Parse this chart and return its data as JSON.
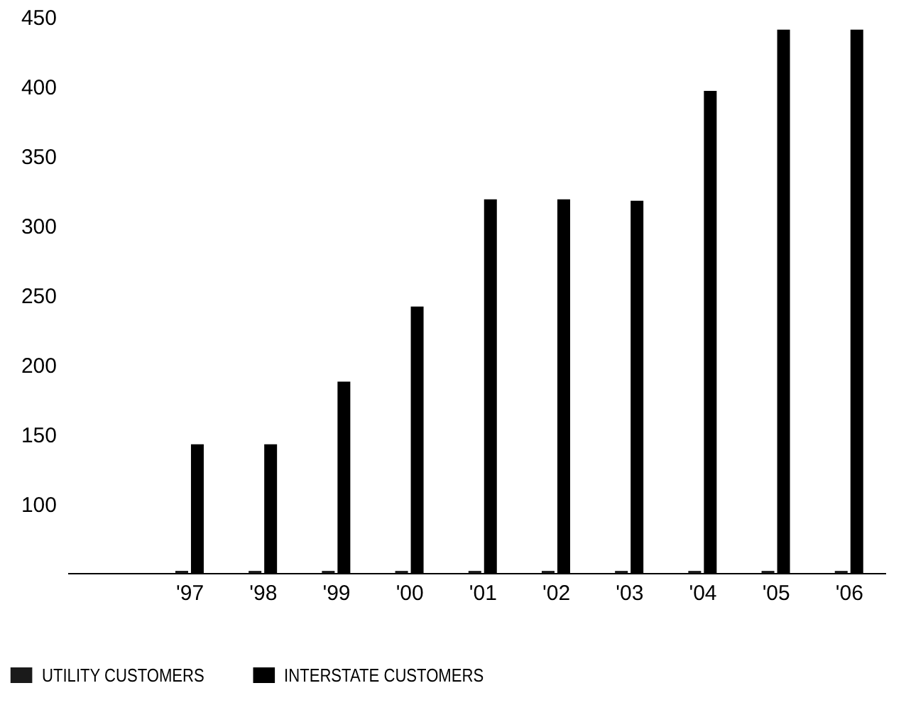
{
  "chart_data": {
    "type": "bar",
    "categories": [
      "'97",
      "'98",
      "'99",
      "'00",
      "'01",
      "'02",
      "'03",
      "'04",
      "'05",
      "'06"
    ],
    "series": [
      {
        "name": "UTILITY CUSTOMERS",
        "color": "#1a1a1a",
        "values": [
          52,
          52,
          52,
          52,
          52,
          52,
          52,
          52,
          52,
          52
        ]
      },
      {
        "name": "INTERSTATE CUSTOMERS",
        "color": "#000000",
        "values": [
          143,
          143,
          188,
          242,
          319,
          319,
          318,
          397,
          441,
          441
        ]
      }
    ],
    "ylim": [
      50,
      450
    ],
    "yticks": [
      100,
      150,
      200,
      250,
      300,
      350,
      400,
      450
    ],
    "grid": false,
    "legend": "bottom left"
  }
}
